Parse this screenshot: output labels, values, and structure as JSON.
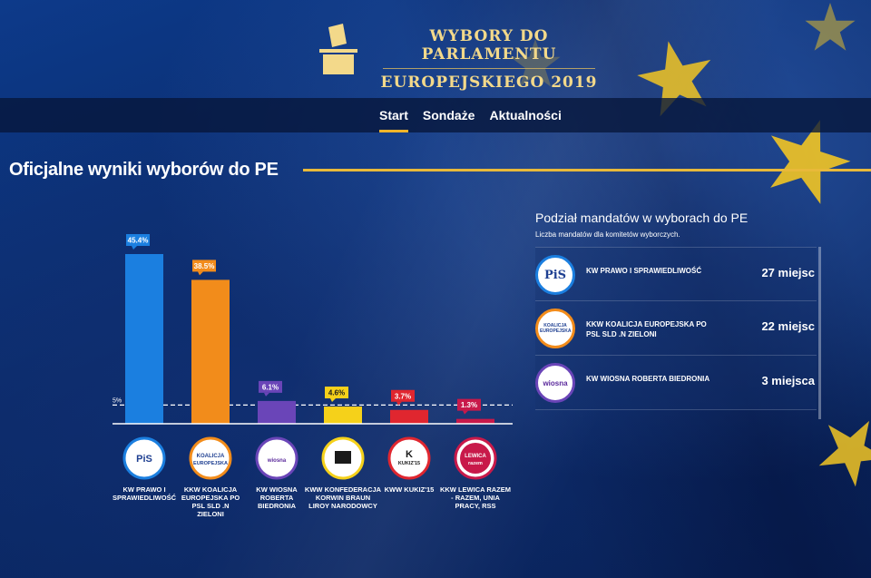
{
  "header": {
    "title_line1": "WYBORY DO PARLAMENTU",
    "title_line2": "EUROPEJSKIEGO 2019",
    "logo_icon": "ballot-box-icon"
  },
  "nav": {
    "items": [
      {
        "label": "Start",
        "active": true
      },
      {
        "label": "Sondaże",
        "active": false
      },
      {
        "label": "Aktualności",
        "active": false
      }
    ]
  },
  "section_title": "Oficjalne wyniki wyborów do PE",
  "chart_data": {
    "type": "bar",
    "threshold": {
      "value": 5,
      "label": "5%"
    },
    "ylim": [
      0,
      45.4
    ],
    "categories": [
      "KW PRAWO I SPRAWIEDLIWOŚĆ",
      "KKW KOALICJA EUROPEJSKA PO PSL SLD .N ZIELONI",
      "KW WIOSNA ROBERTA BIEDRONIA",
      "KWW KONFEDERACJA KORWIN BRAUN LIROY NARODOWCY",
      "KWW KUKIZ'15",
      "KKW LEWICA RAZEM - RAZEM, UNIA PRACY, RSS"
    ],
    "values": [
      45.4,
      38.5,
      6.1,
      4.6,
      3.7,
      1.3
    ],
    "value_labels": [
      "45.4%",
      "38.5%",
      "6.1%",
      "4.6%",
      "3.7%",
      "1.3%"
    ],
    "colors": [
      "#1b7fe0",
      "#f28c1b",
      "#6a45b8",
      "#f5d11a",
      "#e0262f",
      "#c8194a"
    ],
    "badge_text_colors": [
      "#ffffff",
      "#ffffff",
      "#ffffff",
      "#1a1a1a",
      "#ffffff",
      "#ffffff"
    ],
    "logos": [
      {
        "text": "PiS",
        "color": "#1e3f91"
      },
      {
        "text": "KOALICJA",
        "text2": "EUROPEJSKA",
        "color": "#1e3f91"
      },
      {
        "text": "wiosna",
        "color": "#5b2a9c"
      },
      {
        "text": "",
        "color": "#1a1a1a"
      },
      {
        "text": "K",
        "text2": "KUKIZ'15",
        "color": "#1a1a1a"
      },
      {
        "text": "LEWICA",
        "text2": "razem",
        "color": "#ffffff"
      }
    ],
    "logo_borders": [
      "#1b7fe0",
      "#f28c1b",
      "#6a45b8",
      "#f5d11a",
      "#e0262f",
      "#c8194a"
    ]
  },
  "seats_panel": {
    "title": "Podział mandatów w wyborach do PE",
    "subtitle": "Liczba mandatów dla komitetów wyborczych.",
    "rows": [
      {
        "name": "KW PRAWO I SPRAWIEDLIWOŚĆ",
        "count": "27 miejsc",
        "logo": "PiS",
        "border": "#1b7fe0"
      },
      {
        "name": "KKW KOALICJA EUROPEJSKA PO PSL SLD .N ZIELONI",
        "count": "22 miejsc",
        "logo": "KOALICJA EUROPEJSKA",
        "border": "#f28c1b"
      },
      {
        "name": "KW WIOSNA ROBERTA BIEDRONIA",
        "count": "3 miejsca",
        "logo": "wiosna",
        "border": "#6a45b8"
      }
    ]
  }
}
